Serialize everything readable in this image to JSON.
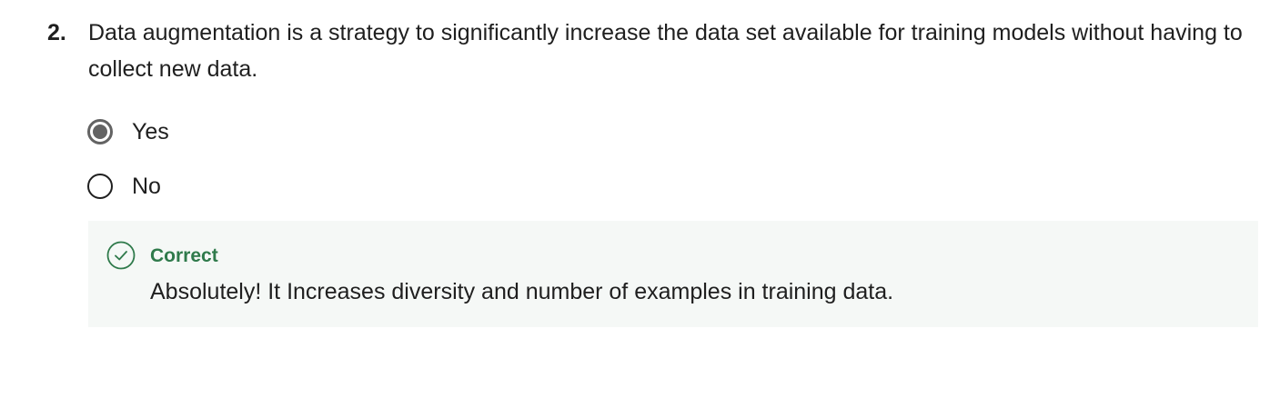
{
  "question": {
    "number": "2.",
    "text": "Data augmentation is a strategy to significantly increase the data set available for training models without having to collect new data."
  },
  "options": [
    {
      "label": "Yes",
      "selected": true
    },
    {
      "label": "No",
      "selected": false
    }
  ],
  "feedback": {
    "status": "Correct",
    "message": "Absolutely! It Increases diversity and number of examples in training data.",
    "icon": "check-circle-icon",
    "status_color": "#2f7a4b",
    "background_color": "#f5f8f6"
  }
}
